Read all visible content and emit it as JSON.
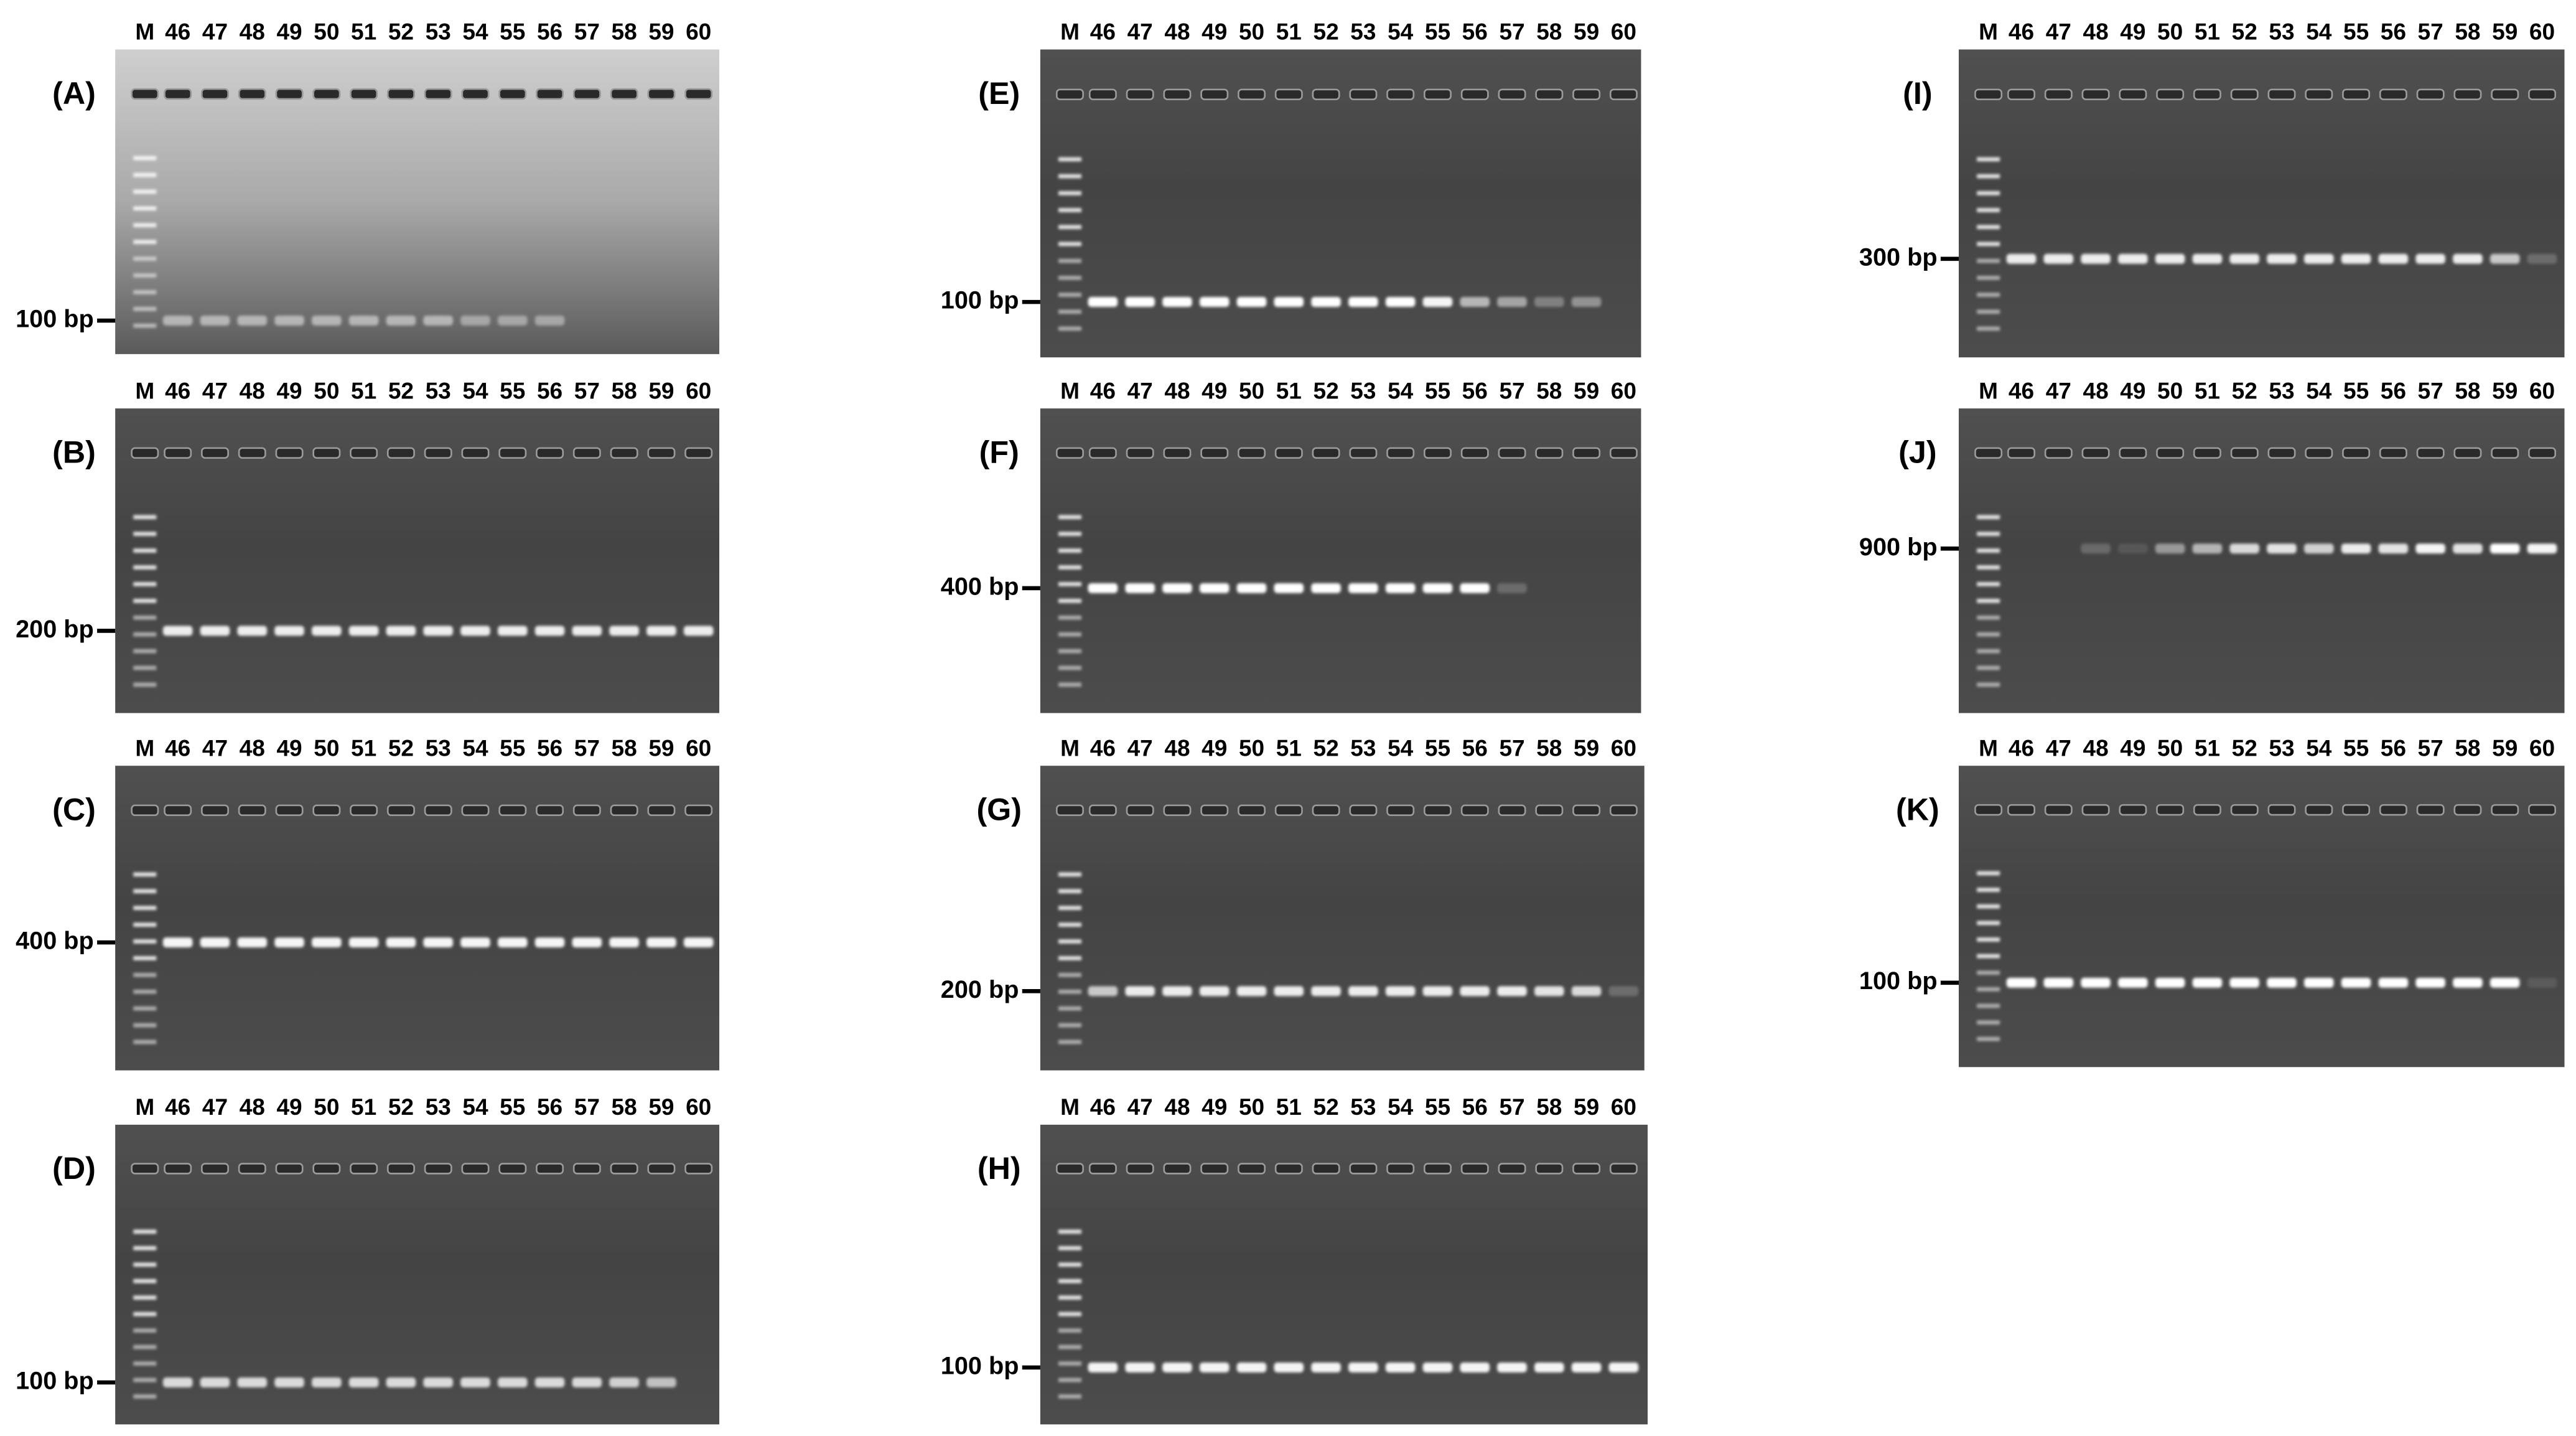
{
  "panels": [
    {
      "label": "(A)",
      "marker": "100 bp",
      "lanes": [
        "M",
        "46",
        "47",
        "48",
        "49",
        "50",
        "51",
        "52",
        "53",
        "54",
        "55",
        "56",
        "57",
        "58",
        "59",
        "60"
      ]
    },
    {
      "label": "(B)",
      "marker": "200 bp",
      "lanes": [
        "M",
        "46",
        "47",
        "48",
        "49",
        "50",
        "51",
        "52",
        "53",
        "54",
        "55",
        "56",
        "57",
        "58",
        "59",
        "60"
      ]
    },
    {
      "label": "(C)",
      "marker": "400 bp",
      "lanes": [
        "M",
        "46",
        "47",
        "48",
        "49",
        "50",
        "51",
        "52",
        "53",
        "54",
        "55",
        "56",
        "57",
        "58",
        "59",
        "60"
      ]
    },
    {
      "label": "(D)",
      "marker": "100 bp",
      "lanes": [
        "M",
        "46",
        "47",
        "48",
        "49",
        "50",
        "51",
        "52",
        "53",
        "54",
        "55",
        "56",
        "57",
        "58",
        "59",
        "60"
      ]
    },
    {
      "label": "(E)",
      "marker": "100 bp",
      "lanes": [
        "M",
        "46",
        "47",
        "48",
        "49",
        "50",
        "51",
        "52",
        "53",
        "54",
        "55",
        "56",
        "57",
        "58",
        "59",
        "60"
      ]
    },
    {
      "label": "(F)",
      "marker": "400 bp",
      "lanes": [
        "M",
        "46",
        "47",
        "48",
        "49",
        "50",
        "51",
        "52",
        "53",
        "54",
        "55",
        "56",
        "57",
        "58",
        "59",
        "60"
      ]
    },
    {
      "label": "(G)",
      "marker": "200 bp",
      "lanes": [
        "M",
        "46",
        "47",
        "48",
        "49",
        "50",
        "51",
        "52",
        "53",
        "54",
        "55",
        "56",
        "57",
        "58",
        "59",
        "60"
      ]
    },
    {
      "label": "(H)",
      "marker": "100 bp",
      "lanes": [
        "M",
        "46",
        "47",
        "48",
        "49",
        "50",
        "51",
        "52",
        "53",
        "54",
        "55",
        "56",
        "57",
        "58",
        "59",
        "60"
      ]
    },
    {
      "label": "(I)",
      "marker": "300 bp",
      "lanes": [
        "M",
        "46",
        "47",
        "48",
        "49",
        "50",
        "51",
        "52",
        "53",
        "54",
        "55",
        "56",
        "57",
        "58",
        "59",
        "60"
      ]
    },
    {
      "label": "(J)",
      "marker": "900 bp",
      "lanes": [
        "M",
        "46",
        "47",
        "48",
        "49",
        "50",
        "51",
        "52",
        "53",
        "54",
        "55",
        "56",
        "57",
        "58",
        "59",
        "60"
      ]
    },
    {
      "label": "(K)",
      "marker": "100 bp",
      "lanes": [
        "M",
        "46",
        "47",
        "48",
        "49",
        "50",
        "51",
        "52",
        "53",
        "54",
        "55",
        "56",
        "57",
        "58",
        "59",
        "60"
      ]
    }
  ]
}
